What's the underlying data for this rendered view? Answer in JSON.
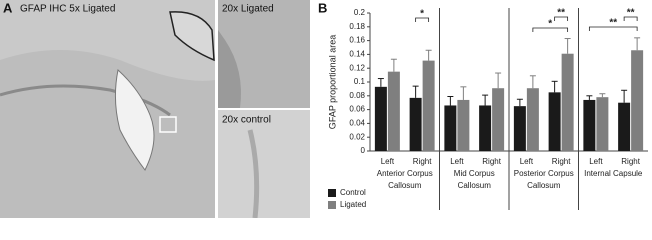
{
  "panel_a": {
    "label": "A",
    "main_title": "GFAP IHC 5x Ligated",
    "inset_top_title": "20x Ligated",
    "inset_bottom_title": "20x control"
  },
  "chart_data": {
    "type": "bar",
    "panel_label": "B",
    "y_label": "GFAP proportional area",
    "categories": [
      "Left",
      "Right",
      "Left",
      "Right",
      "Left",
      "Right",
      "Left",
      "Right"
    ],
    "group_labels": [
      [
        "Anterior Corpus",
        "Callosum"
      ],
      [
        "Mid Corpus",
        "Callosum"
      ],
      [
        "Posterior Corpus",
        "Callosum"
      ],
      [
        "Internal Capsule"
      ]
    ],
    "series": [
      {
        "name": "Control",
        "color": "#1a1a1a",
        "values": [
          0.093,
          0.077,
          0.066,
          0.066,
          0.065,
          0.085,
          0.074,
          0.07
        ],
        "errors": [
          0.012,
          0.017,
          0.013,
          0.015,
          0.01,
          0.016,
          0.006,
          0.018
        ]
      },
      {
        "name": "Ligated",
        "color": "#7f7f7f",
        "values": [
          0.115,
          0.131,
          0.074,
          0.091,
          0.091,
          0.141,
          0.078,
          0.146
        ],
        "errors": [
          0.018,
          0.015,
          0.019,
          0.022,
          0.018,
          0.022,
          0.005,
          0.018
        ]
      }
    ],
    "annotations": [
      "*",
      "**",
      "*",
      "**",
      "**"
    ],
    "ylim": [
      0,
      0.2
    ],
    "yticks": [
      0,
      0.02,
      0.04,
      0.06,
      0.08,
      0.1,
      0.12,
      0.14,
      0.16,
      0.18,
      0.2
    ]
  }
}
